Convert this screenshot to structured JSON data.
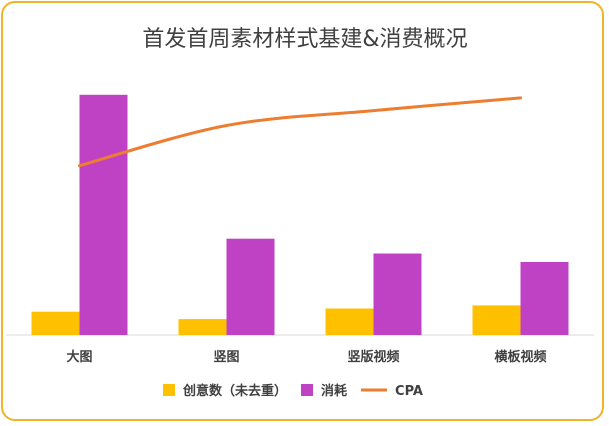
{
  "chart_data": {
    "type": "bar",
    "title": "首发首周素材样式基建&消费概况",
    "categories": [
      "大图",
      "竖图",
      "竖版视频",
      "横板视频"
    ],
    "series": [
      {
        "name": "创意数（未去重）",
        "type": "bar",
        "color": "#ffc000",
        "values": [
          22,
          15,
          25,
          28
        ]
      },
      {
        "name": "消耗",
        "type": "bar",
        "color": "#c042c4",
        "values": [
          227,
          91,
          77,
          69
        ]
      },
      {
        "name": "CPA",
        "type": "line",
        "color": "#ed7d31",
        "values": [
          160,
          198,
          212,
          224
        ]
      }
    ],
    "ylim": [
      0,
      240
    ],
    "grid": false,
    "legend": "bottom",
    "show_value_axis": false
  }
}
